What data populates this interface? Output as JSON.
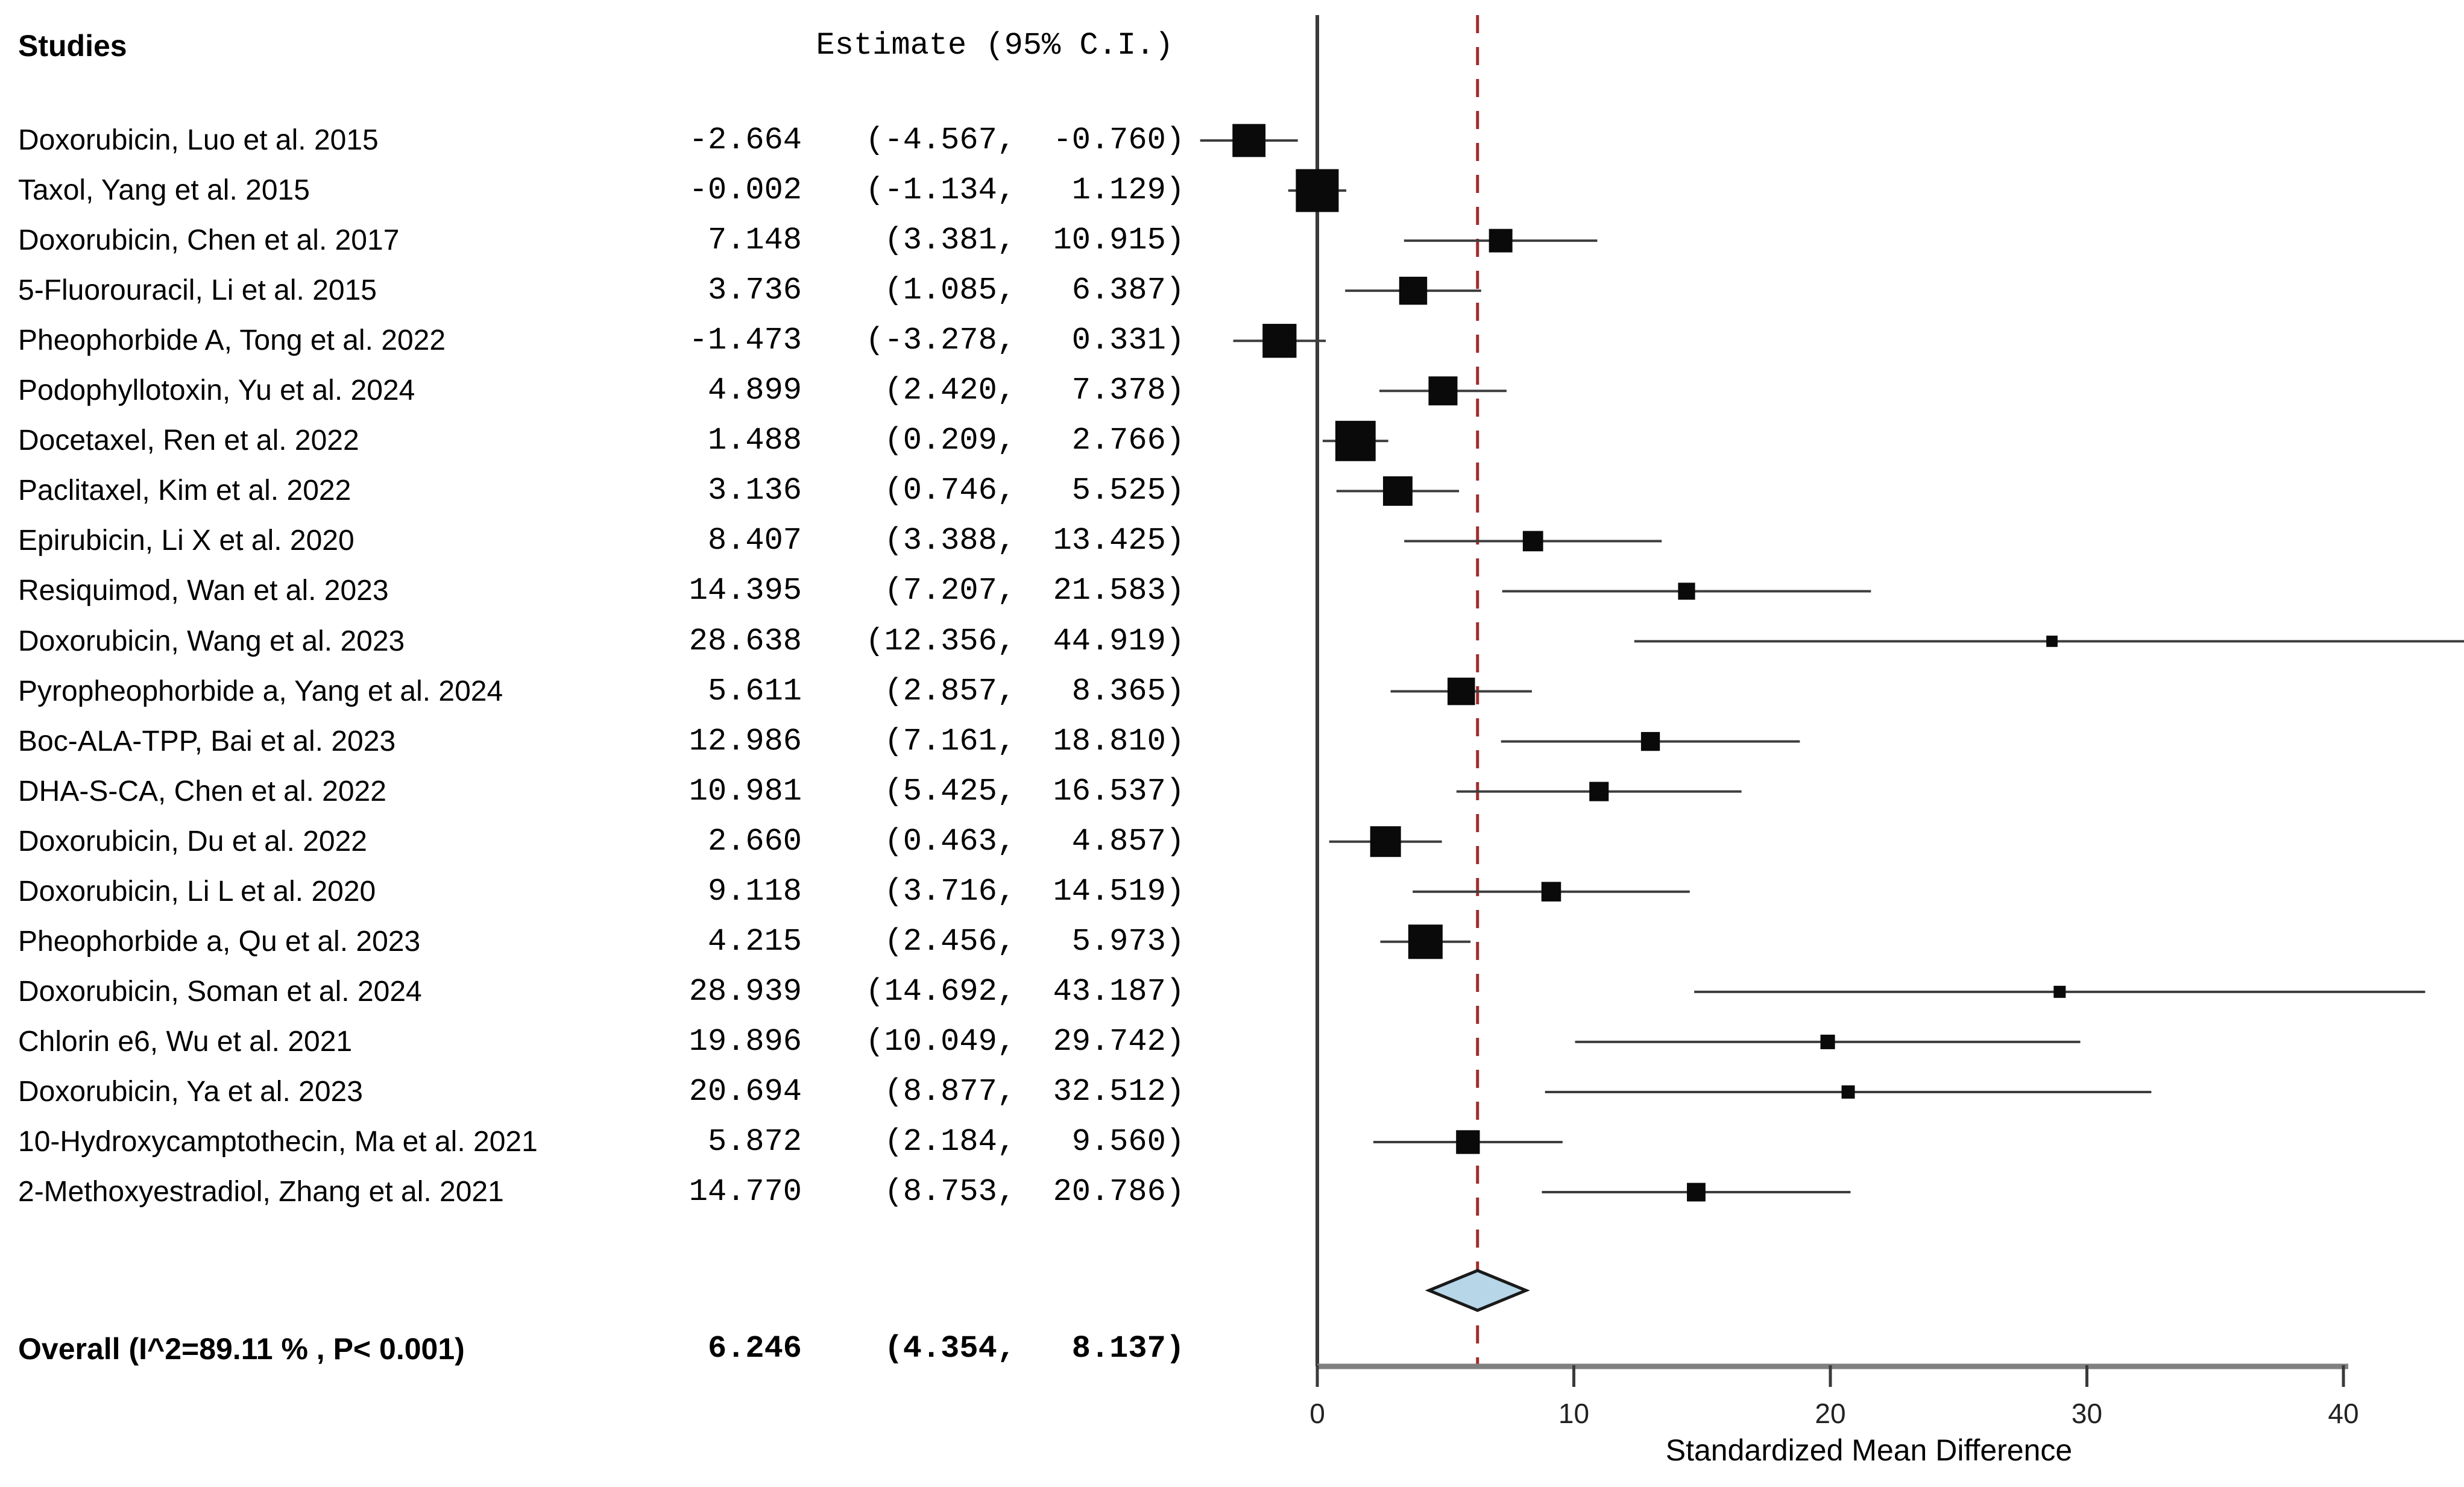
{
  "header": {
    "studies_label": "Studies",
    "estimate_label": "Estimate (95% C.I.)"
  },
  "chart_data": {
    "type": "forest",
    "xlabel": "Standardized Mean Difference",
    "x_ticks": [
      0,
      10,
      20,
      30,
      40
    ],
    "xlim": [
      -5.3,
      44.7
    ],
    "zero_line_x": 0,
    "ref_line_x": 6.246,
    "grid": false,
    "studies": [
      {
        "label": "Doxorubicin, Luo et al. 2015",
        "est": -2.664,
        "lo": -4.567,
        "hi": -0.76,
        "est_text": "-2.664",
        "lo_text": "(-4.567,",
        "hi_text": "-0.760)"
      },
      {
        "label": "Taxol, Yang et al. 2015",
        "est": -0.002,
        "lo": -1.134,
        "hi": 1.129,
        "est_text": "-0.002",
        "lo_text": "(-1.134,",
        "hi_text": "1.129)"
      },
      {
        "label": "Doxorubicin, Chen et al. 2017",
        "est": 7.148,
        "lo": 3.381,
        "hi": 10.915,
        "est_text": "7.148",
        "lo_text": "(3.381,",
        "hi_text": "10.915)"
      },
      {
        "label": "5-Fluorouracil, Li et al. 2015",
        "est": 3.736,
        "lo": 1.085,
        "hi": 6.387,
        "est_text": "3.736",
        "lo_text": "(1.085,",
        "hi_text": "6.387)"
      },
      {
        "label": "Pheophorbide A, Tong et al. 2022",
        "est": -1.473,
        "lo": -3.278,
        "hi": 0.331,
        "est_text": "-1.473",
        "lo_text": "(-3.278,",
        "hi_text": "0.331)"
      },
      {
        "label": "Podophyllotoxin, Yu et al. 2024",
        "est": 4.899,
        "lo": 2.42,
        "hi": 7.378,
        "est_text": "4.899",
        "lo_text": "(2.420,",
        "hi_text": "7.378)"
      },
      {
        "label": "Docetaxel, Ren et al. 2022",
        "est": 1.488,
        "lo": 0.209,
        "hi": 2.766,
        "est_text": "1.488",
        "lo_text": "(0.209,",
        "hi_text": "2.766)"
      },
      {
        "label": "Paclitaxel, Kim et al. 2022",
        "est": 3.136,
        "lo": 0.746,
        "hi": 5.525,
        "est_text": "3.136",
        "lo_text": "(0.746,",
        "hi_text": "5.525)"
      },
      {
        "label": "Epirubicin, Li X et al. 2020",
        "est": 8.407,
        "lo": 3.388,
        "hi": 13.425,
        "est_text": "8.407",
        "lo_text": "(3.388,",
        "hi_text": "13.425)"
      },
      {
        "label": "Resiquimod, Wan et al. 2023",
        "est": 14.395,
        "lo": 7.207,
        "hi": 21.583,
        "est_text": "14.395",
        "lo_text": "(7.207,",
        "hi_text": "21.583)"
      },
      {
        "label": "Doxorubicin, Wang et al. 2023",
        "est": 28.638,
        "lo": 12.356,
        "hi": 44.919,
        "est_text": "28.638",
        "lo_text": "(12.356,",
        "hi_text": "44.919)"
      },
      {
        "label": "Pyropheophorbide a, Yang et al. 2024",
        "est": 5.611,
        "lo": 2.857,
        "hi": 8.365,
        "est_text": "5.611",
        "lo_text": "(2.857,",
        "hi_text": "8.365)"
      },
      {
        "label": "Boc-ALA-TPP, Bai et al. 2023",
        "est": 12.986,
        "lo": 7.161,
        "hi": 18.81,
        "est_text": "12.986",
        "lo_text": "(7.161,",
        "hi_text": "18.810)"
      },
      {
        "label": "DHA-S-CA, Chen et al. 2022",
        "est": 10.981,
        "lo": 5.425,
        "hi": 16.537,
        "est_text": "10.981",
        "lo_text": "(5.425,",
        "hi_text": "16.537)"
      },
      {
        "label": "Doxorubicin, Du et al. 2022",
        "est": 2.66,
        "lo": 0.463,
        "hi": 4.857,
        "est_text": "2.660",
        "lo_text": "(0.463,",
        "hi_text": "4.857)"
      },
      {
        "label": "Doxorubicin, Li L et al. 2020",
        "est": 9.118,
        "lo": 3.716,
        "hi": 14.519,
        "est_text": "9.118",
        "lo_text": "(3.716,",
        "hi_text": "14.519)"
      },
      {
        "label": "Pheophorbide a, Qu et al. 2023",
        "est": 4.215,
        "lo": 2.456,
        "hi": 5.973,
        "est_text": "4.215",
        "lo_text": "(2.456,",
        "hi_text": "5.973)"
      },
      {
        "label": "Doxorubicin, Soman et al. 2024",
        "est": 28.939,
        "lo": 14.692,
        "hi": 43.187,
        "est_text": "28.939",
        "lo_text": "(14.692,",
        "hi_text": "43.187)"
      },
      {
        "label": "Chlorin e6, Wu et al. 2021",
        "est": 19.896,
        "lo": 10.049,
        "hi": 29.742,
        "est_text": "19.896",
        "lo_text": "(10.049,",
        "hi_text": "29.742)"
      },
      {
        "label": "Doxorubicin, Ya et al. 2023",
        "est": 20.694,
        "lo": 8.877,
        "hi": 32.512,
        "est_text": "20.694",
        "lo_text": "(8.877,",
        "hi_text": "32.512)"
      },
      {
        "label": "10-Hydroxycamptothecin, Ma et al. 2021",
        "est": 5.872,
        "lo": 2.184,
        "hi": 9.56,
        "est_text": "5.872",
        "lo_text": "(2.184,",
        "hi_text": "9.560)"
      },
      {
        "label": "2-Methoxyestradiol, Zhang et al. 2021",
        "est": 14.77,
        "lo": 8.753,
        "hi": 20.786,
        "est_text": "14.770",
        "lo_text": "(8.753,",
        "hi_text": "20.786)"
      }
    ],
    "overall": {
      "label": "Overall (I^2=89.11 % , P< 0.001)",
      "est": 6.246,
      "lo": 4.354,
      "hi": 8.137,
      "est_text": "6.246",
      "lo_text": "(4.354,",
      "hi_text": "8.137)"
    },
    "colors": {
      "marker": "#0a0a0a",
      "ci_line": "#3d3d3d",
      "ref_line": "#a02c2c",
      "zero_line": "#3a3a3a",
      "axis_line": "#808080",
      "tick": "#3a3a3a",
      "tick_label": "#222222",
      "diamond_fill": "#b7d6e8",
      "diamond_stroke": "#1a1a1a",
      "text": "#000000"
    }
  }
}
